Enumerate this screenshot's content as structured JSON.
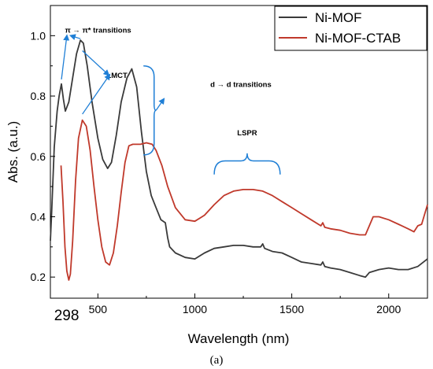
{
  "chart_data": {
    "type": "line",
    "xlabel": "Wavelength (nm)",
    "ylabel": "Abs. (a.u.)",
    "caption": "(a)",
    "xlim": [
      255,
      2200
    ],
    "ylim": [
      0.13,
      1.1
    ],
    "xticks": [
      500,
      1000,
      1500,
      2000
    ],
    "xtick_labels": [
      "500",
      "1000",
      "1500",
      "2000"
    ],
    "extra_xtick": {
      "value": 298,
      "label": "298"
    },
    "yticks": [
      0.2,
      0.4,
      0.6,
      0.8,
      1.0
    ],
    "ytick_labels": [
      "0.2",
      "0.4",
      "0.6",
      "0.8",
      "1.0"
    ],
    "grid": false,
    "legend_position": "top-right",
    "series": [
      {
        "name": "Ni-MOF",
        "color": "#3a3a3a",
        "points": [
          [
            255,
            0.32
          ],
          [
            262,
            0.42
          ],
          [
            275,
            0.63
          ],
          [
            290,
            0.75
          ],
          [
            300,
            0.8
          ],
          [
            312,
            0.84
          ],
          [
            322,
            0.79
          ],
          [
            332,
            0.75
          ],
          [
            350,
            0.78
          ],
          [
            370,
            0.86
          ],
          [
            390,
            0.94
          ],
          [
            410,
            0.985
          ],
          [
            425,
            0.975
          ],
          [
            445,
            0.9
          ],
          [
            470,
            0.78
          ],
          [
            500,
            0.66
          ],
          [
            525,
            0.59
          ],
          [
            550,
            0.56
          ],
          [
            570,
            0.58
          ],
          [
            595,
            0.67
          ],
          [
            620,
            0.78
          ],
          [
            650,
            0.86
          ],
          [
            675,
            0.89
          ],
          [
            700,
            0.83
          ],
          [
            725,
            0.68
          ],
          [
            750,
            0.55
          ],
          [
            775,
            0.47
          ],
          [
            800,
            0.43
          ],
          [
            825,
            0.39
          ],
          [
            848,
            0.38
          ],
          [
            860,
            0.33
          ],
          [
            870,
            0.3
          ],
          [
            900,
            0.28
          ],
          [
            950,
            0.265
          ],
          [
            1000,
            0.26
          ],
          [
            1050,
            0.28
          ],
          [
            1100,
            0.295
          ],
          [
            1150,
            0.3
          ],
          [
            1200,
            0.305
          ],
          [
            1250,
            0.305
          ],
          [
            1300,
            0.3
          ],
          [
            1340,
            0.3
          ],
          [
            1350,
            0.31
          ],
          [
            1360,
            0.295
          ],
          [
            1400,
            0.285
          ],
          [
            1450,
            0.28
          ],
          [
            1500,
            0.265
          ],
          [
            1550,
            0.25
          ],
          [
            1600,
            0.245
          ],
          [
            1650,
            0.24
          ],
          [
            1660,
            0.25
          ],
          [
            1670,
            0.235
          ],
          [
            1700,
            0.23
          ],
          [
            1750,
            0.225
          ],
          [
            1800,
            0.215
          ],
          [
            1850,
            0.205
          ],
          [
            1880,
            0.2
          ],
          [
            1900,
            0.215
          ],
          [
            1950,
            0.225
          ],
          [
            2000,
            0.23
          ],
          [
            2050,
            0.225
          ],
          [
            2100,
            0.225
          ],
          [
            2150,
            0.235
          ],
          [
            2200,
            0.26
          ]
        ]
      },
      {
        "name": "Ni-MOF-CTAB",
        "color": "#c0392b",
        "points": [
          [
            310,
            0.57
          ],
          [
            320,
            0.45
          ],
          [
            330,
            0.3
          ],
          [
            340,
            0.22
          ],
          [
            350,
            0.19
          ],
          [
            358,
            0.21
          ],
          [
            370,
            0.32
          ],
          [
            385,
            0.52
          ],
          [
            400,
            0.66
          ],
          [
            420,
            0.72
          ],
          [
            440,
            0.7
          ],
          [
            460,
            0.62
          ],
          [
            480,
            0.5
          ],
          [
            500,
            0.39
          ],
          [
            520,
            0.3
          ],
          [
            540,
            0.25
          ],
          [
            560,
            0.24
          ],
          [
            580,
            0.28
          ],
          [
            600,
            0.37
          ],
          [
            620,
            0.48
          ],
          [
            640,
            0.58
          ],
          [
            660,
            0.635
          ],
          [
            680,
            0.64
          ],
          [
            700,
            0.64
          ],
          [
            720,
            0.64
          ],
          [
            750,
            0.645
          ],
          [
            780,
            0.64
          ],
          [
            800,
            0.62
          ],
          [
            830,
            0.57
          ],
          [
            860,
            0.5
          ],
          [
            900,
            0.43
          ],
          [
            950,
            0.39
          ],
          [
            1000,
            0.385
          ],
          [
            1050,
            0.405
          ],
          [
            1100,
            0.44
          ],
          [
            1150,
            0.47
          ],
          [
            1200,
            0.485
          ],
          [
            1250,
            0.49
          ],
          [
            1300,
            0.49
          ],
          [
            1350,
            0.485
          ],
          [
            1400,
            0.47
          ],
          [
            1450,
            0.45
          ],
          [
            1500,
            0.43
          ],
          [
            1550,
            0.41
          ],
          [
            1600,
            0.39
          ],
          [
            1650,
            0.37
          ],
          [
            1660,
            0.38
          ],
          [
            1670,
            0.365
          ],
          [
            1700,
            0.36
          ],
          [
            1750,
            0.355
          ],
          [
            1800,
            0.345
          ],
          [
            1850,
            0.34
          ],
          [
            1880,
            0.34
          ],
          [
            1900,
            0.37
          ],
          [
            1920,
            0.4
          ],
          [
            1950,
            0.4
          ],
          [
            2000,
            0.39
          ],
          [
            2050,
            0.375
          ],
          [
            2100,
            0.36
          ],
          [
            2130,
            0.35
          ],
          [
            2150,
            0.37
          ],
          [
            2170,
            0.375
          ],
          [
            2200,
            0.44
          ]
        ]
      }
    ],
    "annotations": [
      {
        "text": "π → π* transitions",
        "x": 330,
        "y": 1.01
      },
      {
        "text": "LMCT",
        "x": 545,
        "y": 0.86
      },
      {
        "text": "d → d transitions",
        "x": 1080,
        "y": 0.83
      },
      {
        "text": "LSPR",
        "x": 1270,
        "y": 0.67
      }
    ]
  }
}
